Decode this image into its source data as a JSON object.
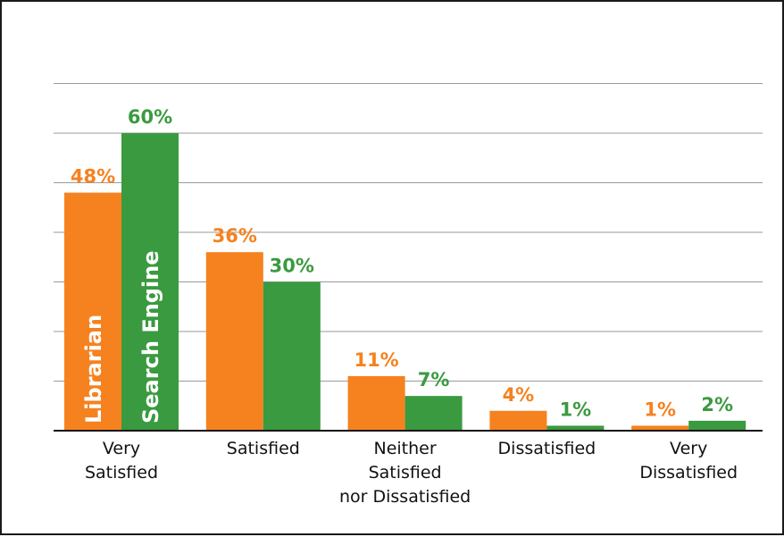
{
  "chart_data": {
    "type": "bar",
    "categories": [
      [
        "Very",
        "Satisfied"
      ],
      [
        "Satisfied"
      ],
      [
        "Neither",
        "Satisfied",
        "nor Dissatisfied"
      ],
      [
        "Dissatisfied"
      ],
      [
        "Very",
        "Dissatisfied"
      ]
    ],
    "series": [
      {
        "name": "Librarian",
        "values": [
          48,
          36,
          11,
          4,
          1
        ],
        "labels": [
          "48%",
          "36%",
          "11%",
          "4%",
          "1%"
        ],
        "color": "#f5821f"
      },
      {
        "name": "Search Engine",
        "values": [
          60,
          30,
          7,
          1,
          2
        ],
        "labels": [
          "60%",
          "30%",
          "7%",
          "1%",
          "2%"
        ],
        "color": "#3a9a3f"
      }
    ],
    "ylim": [
      0,
      70
    ],
    "grid": true,
    "legend": "inside-first-bars",
    "title": "",
    "xlabel": "",
    "ylabel": ""
  }
}
